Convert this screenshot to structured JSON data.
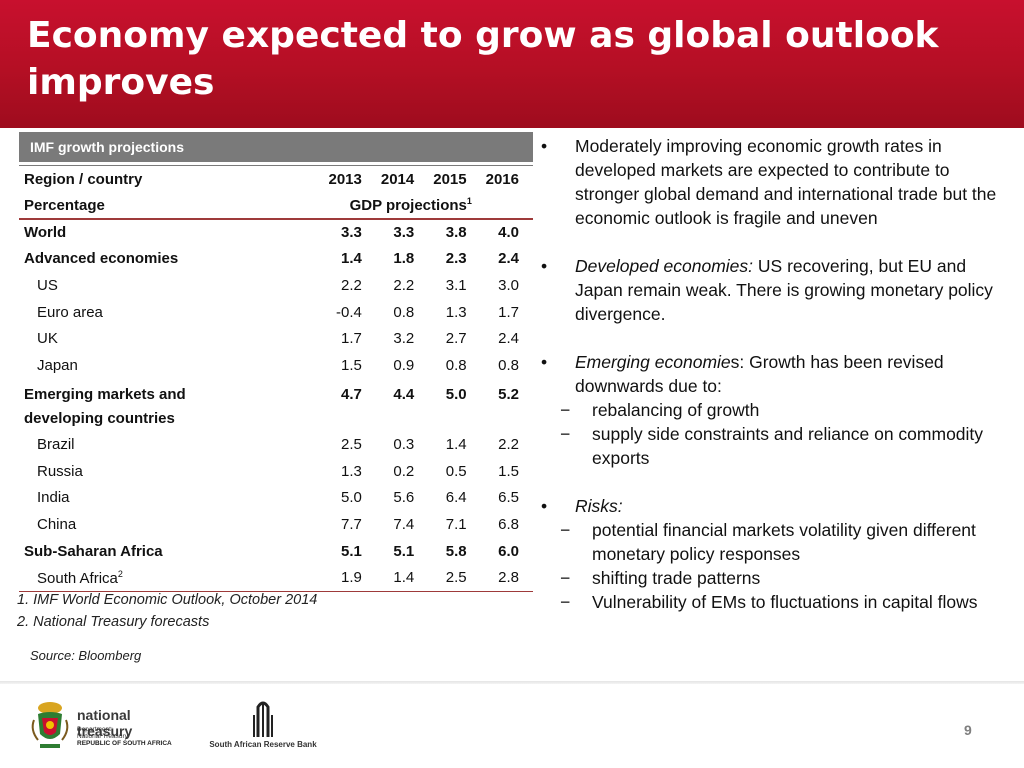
{
  "slide": {
    "title": "Economy expected to grow as global outlook improves",
    "page_number": "9"
  },
  "table": {
    "header": "IMF growth projections",
    "col_region": "Region / country",
    "years": [
      "2013",
      "2014",
      "2015",
      "2016"
    ],
    "subheader_left": "Percentage",
    "subheader_right": "GDP projections",
    "subheader_sup": "1",
    "rows": [
      {
        "label": "World",
        "values": [
          "3.3",
          "3.3",
          "3.8",
          "4.0"
        ]
      },
      {
        "label": "Advanced economies",
        "values": [
          "1.4",
          "1.8",
          "2.3",
          "2.4"
        ]
      },
      {
        "label": "US",
        "values": [
          "2.2",
          "2.2",
          "3.1",
          "3.0"
        ]
      },
      {
        "label": "Euro area",
        "values": [
          "-0.4",
          "0.8",
          "1.3",
          "1.7"
        ]
      },
      {
        "label": "UK",
        "values": [
          "1.7",
          "3.2",
          "2.7",
          "2.4"
        ]
      },
      {
        "label": "Japan",
        "values": [
          "1.5",
          "0.9",
          "0.8",
          "0.8"
        ]
      },
      {
        "label": "Emerging markets and developing countries",
        "values": [
          "4.7",
          "4.4",
          "5.0",
          "5.2"
        ]
      },
      {
        "label": "Brazil",
        "values": [
          "2.5",
          "0.3",
          "1.4",
          "2.2"
        ]
      },
      {
        "label": "Russia",
        "values": [
          "1.3",
          "0.2",
          "0.5",
          "1.5"
        ]
      },
      {
        "label": "India",
        "values": [
          "5.0",
          "5.6",
          "6.4",
          "6.5"
        ]
      },
      {
        "label": "China",
        "values": [
          "7.7",
          "7.4",
          "7.1",
          "6.8"
        ]
      },
      {
        "label": "Sub-Saharan Africa",
        "values": [
          "5.1",
          "5.1",
          "5.8",
          "6.0"
        ]
      },
      {
        "label": "South Africa",
        "label_sup": "2",
        "values": [
          "1.9",
          "1.4",
          "2.5",
          "2.8"
        ]
      }
    ],
    "footnote1": "1. IMF World Economic Outlook, October 2014",
    "footnote2": "2. National Treasury forecasts",
    "source": "Source: Bloomberg"
  },
  "bullets": {
    "b1": "Moderately improving economic growth rates in developed markets are expected to contribute to stronger global demand and international trade but the economic outlook is fragile and uneven",
    "b2_em": "Developed economies:",
    "b2_rest": " US recovering, but EU and Japan remain weak. There is growing monetary policy divergence.",
    "b3_em": "Emerging economie",
    "b3_rest": "s: Growth has been revised downwards due to:",
    "b3_sub": [
      "rebalancing of growth",
      "supply side constraints and reliance on commodity exports"
    ],
    "b4_em": "Risks:",
    "b4_sub": [
      "potential financial markets volatility given different monetary policy responses",
      "shifting trade patterns",
      "Vulnerability of EMs  to fluctuations in capital flows"
    ],
    "bullet_glyph": "•",
    "dash_glyph": "−"
  },
  "logos": {
    "nt_name": "national treasury",
    "nt_dept1": "Department:",
    "nt_dept2": "National Treasury",
    "nt_country": "REPUBLIC OF SOUTH AFRICA",
    "sarb_name": "South African Reserve Bank"
  },
  "colors": {
    "title_red": "#b40f24",
    "table_header_grey": "#7a7a7a",
    "rule_red": "#9e3a3a"
  }
}
